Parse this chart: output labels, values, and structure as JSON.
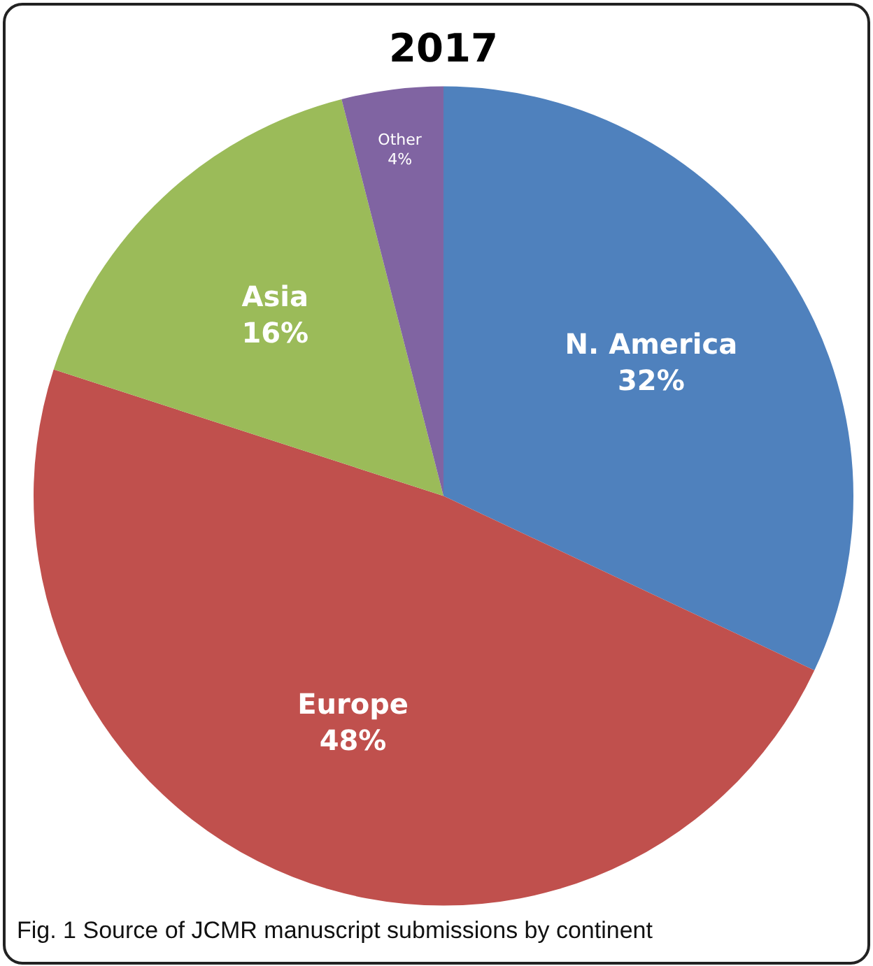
{
  "chart_data": {
    "type": "pie",
    "title": "2017",
    "categories": [
      "N. America",
      "Europe",
      "Asia",
      "Other"
    ],
    "values": [
      32,
      48,
      16,
      4
    ],
    "colors": [
      "#4f81bd",
      "#c0504d",
      "#9bbb59",
      "#8064a2"
    ],
    "value_labels": [
      "32%",
      "48%",
      "16%",
      "4%"
    ],
    "legend": false,
    "annotations": [
      "Fig. 1 Source of JCMR manuscript submissions by continent"
    ]
  }
}
